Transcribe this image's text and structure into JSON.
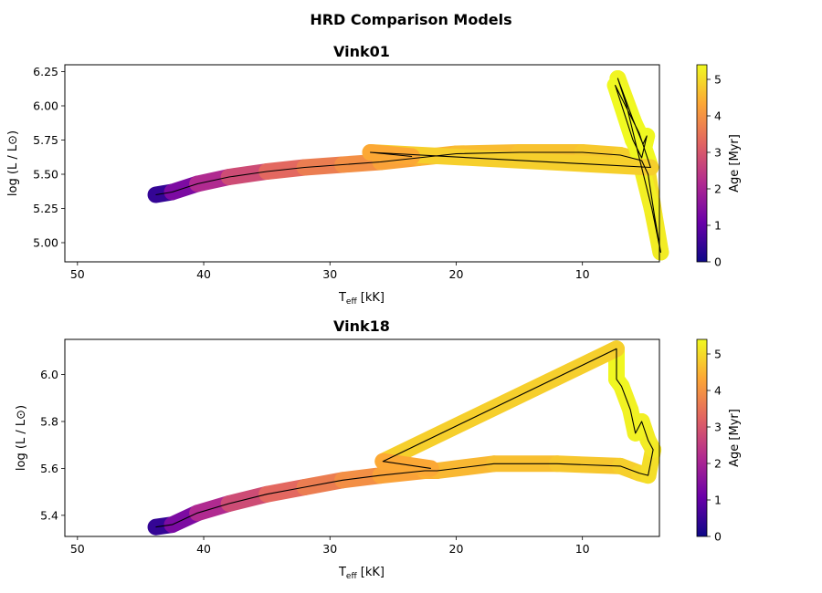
{
  "figure": {
    "suptitle": "HRD Comparison Models"
  },
  "colormap": [
    "#0d0887",
    "#6a00a8",
    "#b12a90",
    "#e16462",
    "#fca636",
    "#f0f921"
  ],
  "chart_data": [
    {
      "type": "line",
      "title": "Vink01",
      "xlabel": "T_eff [kK]",
      "ylabel": "log (L / L⊙)",
      "colorbar_label": "Age [Myr]",
      "x_reversed": true,
      "xlim": [
        51,
        3.9
      ],
      "ylim": [
        4.86,
        6.3
      ],
      "clim": [
        0,
        5.4
      ],
      "xticks": [
        "50",
        "40",
        "30",
        "20",
        "10"
      ],
      "xtick_values": [
        50,
        40,
        30,
        20,
        10
      ],
      "yticks": [
        "5.00",
        "5.25",
        "5.50",
        "5.75",
        "6.00",
        "6.25"
      ],
      "ytick_values": [
        5.0,
        5.25,
        5.5,
        5.75,
        6.0,
        6.25
      ],
      "cticks": [
        "0",
        "1",
        "2",
        "3",
        "4",
        "5"
      ],
      "ctick_values": [
        0,
        1,
        2,
        3,
        4,
        5
      ],
      "track": [
        {
          "teff": 43.8,
          "logL": 5.35,
          "age": 0.0
        },
        {
          "teff": 42.5,
          "logL": 5.37,
          "age": 0.9
        },
        {
          "teff": 40.5,
          "logL": 5.43,
          "age": 1.8
        },
        {
          "teff": 38.0,
          "logL": 5.48,
          "age": 2.5
        },
        {
          "teff": 35.0,
          "logL": 5.52,
          "age": 3.1
        },
        {
          "teff": 32.0,
          "logL": 5.55,
          "age": 3.5
        },
        {
          "teff": 29.0,
          "logL": 5.57,
          "age": 3.8
        },
        {
          "teff": 26.0,
          "logL": 5.59,
          "age": 4.1
        },
        {
          "teff": 23.0,
          "logL": 5.62,
          "age": 4.4
        },
        {
          "teff": 20.0,
          "logL": 5.65,
          "age": 4.55
        },
        {
          "teff": 15.0,
          "logL": 5.66,
          "age": 4.65
        },
        {
          "teff": 10.0,
          "logL": 5.66,
          "age": 4.72
        },
        {
          "teff": 7.0,
          "logL": 5.64,
          "age": 4.8
        },
        {
          "teff": 5.3,
          "logL": 5.6,
          "age": 4.9
        },
        {
          "teff": 4.8,
          "logL": 5.5,
          "age": 5.0
        },
        {
          "teff": 4.3,
          "logL": 5.2,
          "age": 5.1
        },
        {
          "teff": 3.8,
          "logL": 4.93,
          "age": 5.2
        },
        {
          "teff": 4.5,
          "logL": 5.25,
          "age": 5.25
        },
        {
          "teff": 5.5,
          "logL": 5.62,
          "age": 5.28
        },
        {
          "teff": 6.5,
          "logL": 6.0,
          "age": 5.3
        },
        {
          "teff": 7.2,
          "logL": 6.2,
          "age": 5.32
        },
        {
          "teff": 6.0,
          "logL": 5.9,
          "age": 5.34
        },
        {
          "teff": 5.2,
          "logL": 5.72,
          "age": 5.36
        },
        {
          "teff": 4.9,
          "logL": 5.78,
          "age": 5.37
        },
        {
          "teff": 5.3,
          "logL": 5.62,
          "age": 5.38
        },
        {
          "teff": 6.0,
          "logL": 5.75,
          "age": 5.39
        },
        {
          "teff": 7.4,
          "logL": 6.15,
          "age": 5.4
        },
        {
          "teff": 5.5,
          "logL": 5.8,
          "age": 5.4
        },
        {
          "teff": 4.6,
          "logL": 5.55,
          "age": 5.4
        },
        {
          "teff": 26.8,
          "logL": 5.66,
          "age": 4.3
        },
        {
          "teff": 23.5,
          "logL": 5.63,
          "age": 4.4
        }
      ]
    },
    {
      "type": "line",
      "title": "Vink18",
      "xlabel": "T_eff [kK]",
      "ylabel": "log (L / L⊙)",
      "colorbar_label": "Age [Myr]",
      "x_reversed": true,
      "xlim": [
        51,
        3.9
      ],
      "ylim": [
        5.31,
        6.15
      ],
      "clim": [
        0,
        5.4
      ],
      "xticks": [
        "50",
        "40",
        "30",
        "20",
        "10"
      ],
      "xtick_values": [
        50,
        40,
        30,
        20,
        10
      ],
      "yticks": [
        "5.4",
        "5.6",
        "5.8",
        "6.0"
      ],
      "ytick_values": [
        5.4,
        5.6,
        5.8,
        6.0
      ],
      "cticks": [
        "0",
        "1",
        "2",
        "3",
        "4",
        "5"
      ],
      "ctick_values": [
        0,
        1,
        2,
        3,
        4,
        5
      ],
      "track": [
        {
          "teff": 43.8,
          "logL": 5.35,
          "age": 0.0
        },
        {
          "teff": 42.5,
          "logL": 5.36,
          "age": 0.9
        },
        {
          "teff": 40.5,
          "logL": 5.41,
          "age": 1.8
        },
        {
          "teff": 38.0,
          "logL": 5.45,
          "age": 2.5
        },
        {
          "teff": 35.0,
          "logL": 5.49,
          "age": 3.1
        },
        {
          "teff": 32.0,
          "logL": 5.52,
          "age": 3.5
        },
        {
          "teff": 29.0,
          "logL": 5.55,
          "age": 3.8
        },
        {
          "teff": 26.0,
          "logL": 5.57,
          "age": 4.1
        },
        {
          "teff": 22.5,
          "logL": 5.59,
          "age": 4.4
        },
        {
          "teff": 21.5,
          "logL": 5.59,
          "age": 4.5
        },
        {
          "teff": 17.0,
          "logL": 5.62,
          "age": 4.6
        },
        {
          "teff": 12.0,
          "logL": 5.62,
          "age": 4.7
        },
        {
          "teff": 7.0,
          "logL": 5.61,
          "age": 4.8
        },
        {
          "teff": 5.5,
          "logL": 5.58,
          "age": 4.9
        },
        {
          "teff": 4.8,
          "logL": 5.57,
          "age": 5.0
        },
        {
          "teff": 4.4,
          "logL": 5.68,
          "age": 5.1
        },
        {
          "teff": 4.8,
          "logL": 5.72,
          "age": 5.2
        },
        {
          "teff": 5.3,
          "logL": 5.8,
          "age": 5.25
        },
        {
          "teff": 5.8,
          "logL": 5.75,
          "age": 5.28
        },
        {
          "teff": 6.2,
          "logL": 5.85,
          "age": 5.3
        },
        {
          "teff": 6.9,
          "logL": 5.95,
          "age": 5.33
        },
        {
          "teff": 7.3,
          "logL": 5.98,
          "age": 5.36
        },
        {
          "teff": 7.3,
          "logL": 6.11,
          "age": 5.4
        },
        {
          "teff": 25.8,
          "logL": 5.63,
          "age": 4.3
        },
        {
          "teff": 22.0,
          "logL": 5.6,
          "age": 4.4
        }
      ]
    }
  ]
}
